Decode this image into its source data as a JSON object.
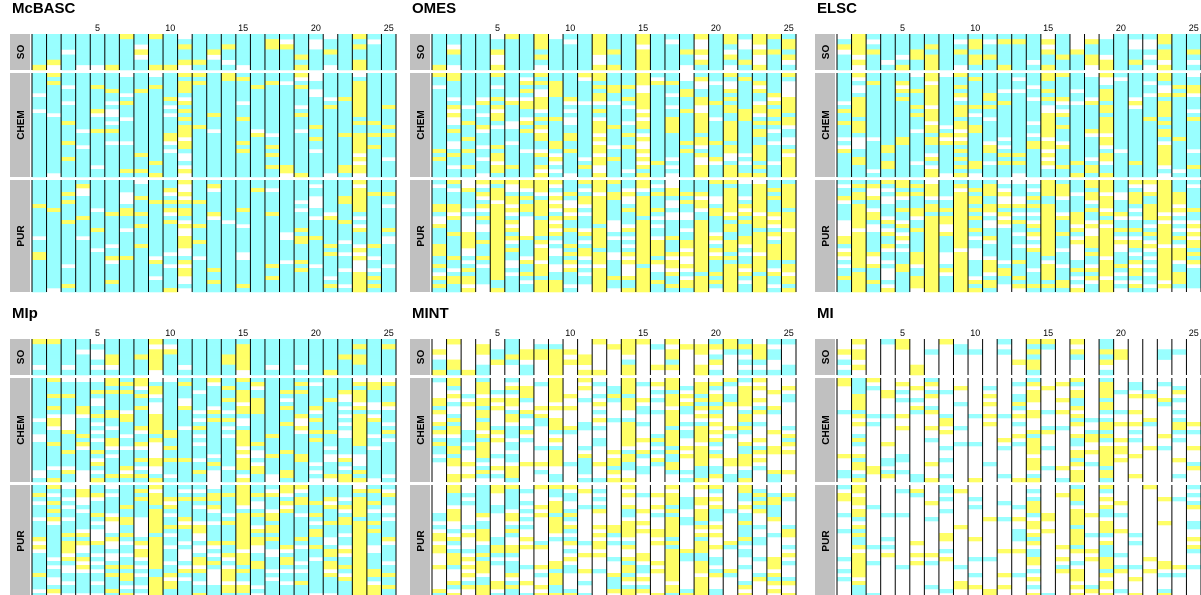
{
  "chart_data": {
    "type": "heatmap",
    "x_ticks": [
      5,
      10,
      15,
      20,
      25
    ],
    "x_range": [
      1,
      25
    ],
    "groups": [
      "SO",
      "CHEM",
      "PUR"
    ],
    "colors": {
      "background": "#ffffff",
      "high": "#99ffff",
      "mid": "#ffff66",
      "column_line": "#000000",
      "group_label_bg": "#c0c0c0"
    },
    "panels": [
      {
        "title": "McBASC",
        "bias": [
          0.25,
          0.15,
          0.15
        ],
        "strong_cols": [
          1,
          2,
          3,
          4,
          5,
          6,
          7,
          8,
          9,
          10,
          12,
          13,
          14,
          15,
          16,
          17,
          18,
          19,
          20,
          21,
          22,
          24,
          25
        ],
        "yellow_cols": [
          11,
          23
        ]
      },
      {
        "title": "OMES",
        "bias": [
          0.15,
          0.3,
          0.55
        ],
        "strong_cols": [
          1,
          2,
          3,
          4,
          6,
          7,
          9,
          10,
          11,
          13,
          14,
          16,
          17,
          18,
          20,
          22,
          24
        ],
        "yellow_cols": [
          5,
          8,
          12,
          15,
          19,
          21,
          23,
          25
        ]
      },
      {
        "title": "ELSC",
        "bias": [
          0.2,
          0.2,
          0.5
        ],
        "strong_cols": [
          1,
          3,
          4,
          5,
          6,
          8,
          10,
          11,
          12,
          13,
          14,
          16,
          17,
          18,
          20,
          21,
          22,
          24,
          25
        ],
        "yellow_cols": [
          2,
          7,
          9,
          15,
          19,
          23
        ]
      },
      {
        "title": "MIp",
        "bias": [
          0.2,
          0.3,
          0.45
        ],
        "strong_cols": [
          1,
          2,
          3,
          4,
          5,
          6,
          7,
          8,
          10,
          11,
          12,
          13,
          14,
          16,
          17,
          18,
          19,
          20,
          21,
          22,
          24,
          25
        ],
        "yellow_cols": [
          9,
          15,
          23
        ]
      },
      {
        "title": "MINT",
        "bias": [
          0.6,
          0.65,
          0.6
        ],
        "strong_cols": [
          2,
          6,
          20,
          22
        ],
        "yellow_cols": [
          4,
          9,
          14,
          17,
          19
        ]
      },
      {
        "title": "MI",
        "bias": [
          0.85,
          0.75,
          0.8
        ],
        "strong_cols": [],
        "yellow_cols": [
          2,
          14,
          17,
          19
        ]
      }
    ]
  }
}
